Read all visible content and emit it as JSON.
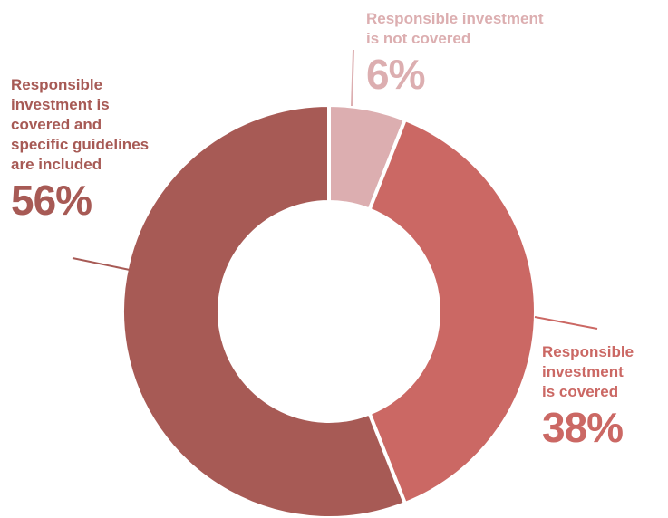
{
  "chart_data": {
    "type": "pie",
    "style": "donut",
    "slices": [
      {
        "label_lines": [
          "Responsible investment",
          "is not covered"
        ],
        "value": 6,
        "value_label": "6%",
        "color": "#dcaeb0"
      },
      {
        "label_lines": [
          "Responsible",
          "investment",
          "is covered"
        ],
        "value": 38,
        "value_label": "38%",
        "color": "#cb6864"
      },
      {
        "label_lines": [
          "Responsible",
          "investment is",
          "covered and",
          "specific guidelines",
          "are included"
        ],
        "value": 56,
        "value_label": "56%",
        "color": "#a75a55"
      }
    ]
  }
}
